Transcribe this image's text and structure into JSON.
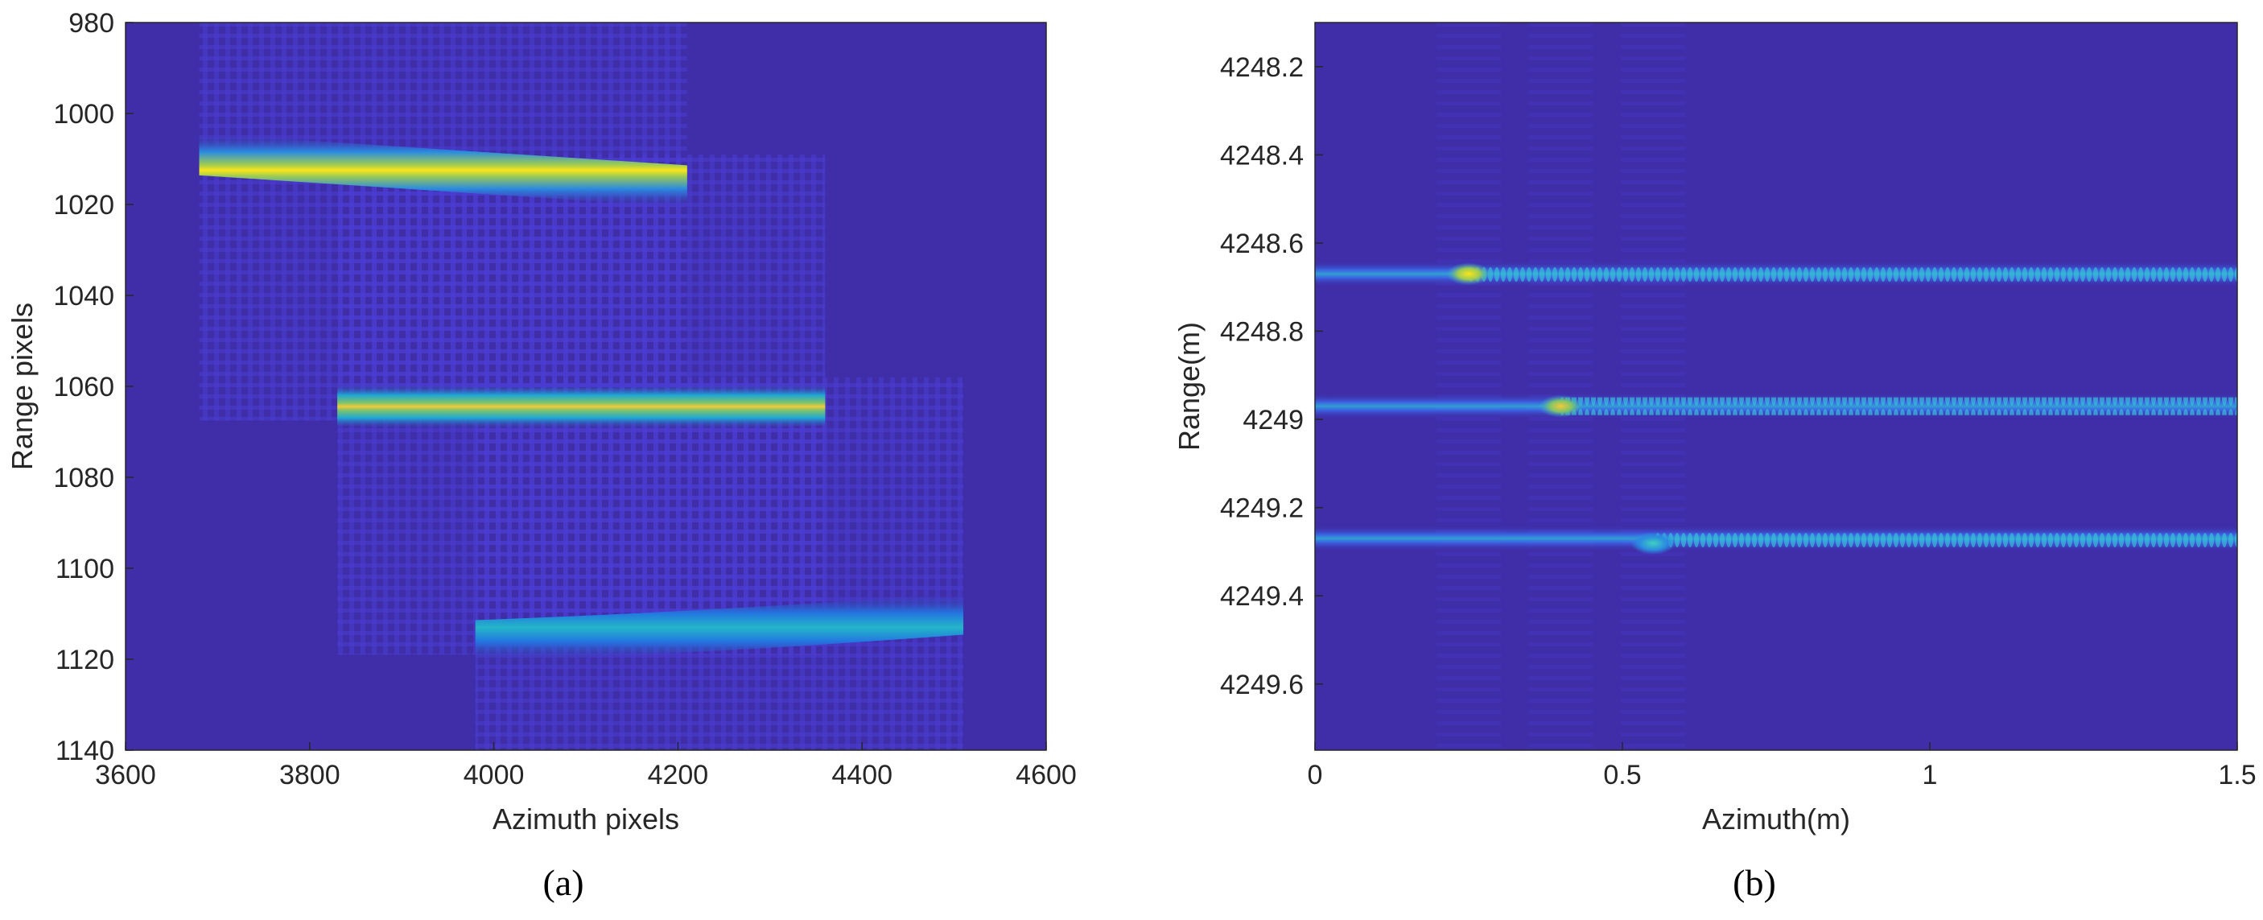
{
  "chart_data": [
    {
      "panel": "(a)",
      "type": "heatmap",
      "xlabel": "Azimuth pixels",
      "ylabel": "Range pixels",
      "xlim": [
        3600,
        4600
      ],
      "ylim": [
        980,
        1140
      ],
      "y_reversed": true,
      "xticks": [
        "3600",
        "3800",
        "4000",
        "4200",
        "4400",
        "4600"
      ],
      "yticks": [
        "980",
        "1000",
        "1020",
        "1040",
        "1060",
        "1080",
        "1100",
        "1120",
        "1140"
      ],
      "colormap": "parula",
      "background_color": "#3f2ea8",
      "stripes": [
        {
          "x_start": 3680,
          "x_end": 4210,
          "range_at_start": 1009,
          "range_at_end": 1016,
          "peak_intensity": 0.95,
          "tint": "#f9e51a"
        },
        {
          "x_start": 3830,
          "x_end": 4360,
          "range_at_start": 1064,
          "range_at_end": 1064,
          "peak_intensity": 0.85,
          "tint": "#f2c93a"
        },
        {
          "x_start": 3980,
          "x_end": 4510,
          "range_at_start": 1116,
          "range_at_end": 1110,
          "peak_intensity": 0.55,
          "tint": "#23b6c8"
        }
      ]
    },
    {
      "panel": "(b)",
      "type": "heatmap",
      "xlabel": "Azimuth(m)",
      "ylabel": "Range(m)",
      "xlim": [
        0,
        1.5
      ],
      "ylim": [
        4248.1,
        4249.75
      ],
      "y_reversed": true,
      "xticks": [
        "0",
        "0.5",
        "1",
        "1.5"
      ],
      "yticks": [
        "4248.2",
        "4248.4",
        "4248.6",
        "4248.8",
        "4249",
        "4249.2",
        "4249.4",
        "4249.6"
      ],
      "colormap": "parula",
      "background_color": "#3f2ea8",
      "lines": [
        {
          "range": 4248.67,
          "peak_azimuth": 0.25,
          "peak_intensity": 0.95,
          "tint": "#f9e51a"
        },
        {
          "range": 4248.97,
          "peak_azimuth": 0.4,
          "peak_intensity": 0.8,
          "tint": "#f2c93a"
        },
        {
          "range": 4249.27,
          "peak_azimuth": 0.55,
          "peak_intensity": 0.5,
          "tint": "#23b6c8"
        }
      ]
    }
  ],
  "captions": {
    "a": "(a)",
    "b": "(b)"
  },
  "colors": {
    "background": "#3f2ea8",
    "line": "#4a3cd1",
    "tick_text": "#262626"
  }
}
